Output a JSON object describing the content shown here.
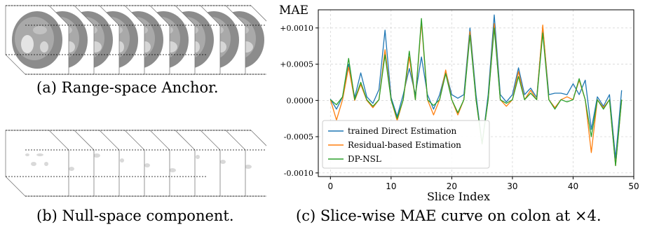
{
  "captions": {
    "a": "(a) Range-space Anchor.",
    "b": "(b) Null-space component.",
    "c": "(c) Slice-wise MAE curve on colon at ×4."
  },
  "chart_data": {
    "type": "line",
    "ylabel": "MAE",
    "xlabel": "Slice Index",
    "xlim": [
      -2,
      50
    ],
    "ylim": [
      -0.00105,
      0.00125
    ],
    "x_ticks": [
      0,
      10,
      20,
      30,
      40,
      50
    ],
    "y_ticks": [
      0.001,
      0.0005,
      0.0,
      -0.0005,
      -0.001
    ],
    "y_tick_labels": [
      "+0.0010",
      "+0.0005",
      "0.0000",
      "-0.0005",
      "-0.0010"
    ],
    "grid": true,
    "legend_position": "lower-left",
    "x": [
      0,
      1,
      2,
      3,
      4,
      5,
      6,
      7,
      8,
      9,
      10,
      11,
      12,
      13,
      14,
      15,
      16,
      17,
      18,
      19,
      20,
      21,
      22,
      23,
      24,
      25,
      26,
      27,
      28,
      29,
      30,
      31,
      32,
      33,
      34,
      35,
      36,
      37,
      38,
      39,
      40,
      41,
      42,
      43,
      44,
      45,
      46,
      47,
      48
    ],
    "series": [
      {
        "name": "trained Direct Estimation",
        "color": "#1f77b4",
        "values": [
          2e-05,
          -0.00012,
          5e-05,
          0.0005,
          4e-05,
          0.00038,
          5e-05,
          -4e-05,
          0.00015,
          0.00097,
          4e-05,
          -0.00022,
          8e-05,
          0.00044,
          8e-05,
          0.0006,
          8e-05,
          -0.00012,
          8e-05,
          0.0004,
          8e-05,
          3e-05,
          8e-05,
          0.001,
          8e-05,
          -0.0006,
          8e-05,
          0.00118,
          8e-05,
          -2e-05,
          8e-05,
          0.00045,
          8e-05,
          0.00017,
          4e-05,
          0.001,
          8e-05,
          0.0001,
          0.0001,
          8e-05,
          0.00023,
          8e-05,
          0.00028,
          -0.0004,
          5e-05,
          -8e-05,
          8e-05,
          -0.0008,
          0.00014
        ]
      },
      {
        "name": "Residual-based Estimation",
        "color": "#ff7f0e",
        "values": [
          1e-05,
          -0.00027,
          1e-05,
          0.00046,
          0.0,
          0.00022,
          0.0,
          -0.0001,
          1e-05,
          0.0007,
          1e-05,
          -0.00028,
          1e-05,
          0.0006,
          1e-05,
          0.00108,
          1e-05,
          -0.0002,
          1e-05,
          0.00042,
          1e-05,
          -0.0002,
          1e-05,
          0.00095,
          1e-05,
          -0.0006,
          1e-05,
          0.00106,
          1e-05,
          -8e-05,
          1e-05,
          0.0004,
          1e-05,
          0.00014,
          1e-05,
          0.00104,
          1e-05,
          -0.0001,
          1e-05,
          5e-05,
          1e-05,
          0.00028,
          1e-05,
          -0.00072,
          1e-05,
          -0.0001,
          1e-05,
          -0.0009,
          1e-05
        ]
      },
      {
        "name": "DP-NSL",
        "color": "#2ca02c",
        "values": [
          1e-05,
          -6e-05,
          5e-05,
          0.00058,
          1e-05,
          0.00025,
          1e-05,
          -8e-05,
          1e-05,
          0.00063,
          1e-05,
          -0.00025,
          1e-05,
          0.00068,
          1e-05,
          0.00113,
          1e-05,
          -7e-05,
          1e-05,
          0.00037,
          1e-05,
          -0.00017,
          1e-05,
          0.0009,
          1e-05,
          -0.0006,
          1e-05,
          0.001,
          1e-05,
          -4e-05,
          1e-05,
          0.00033,
          1e-05,
          0.0001,
          1e-05,
          0.00093,
          1e-05,
          -0.00012,
          1e-05,
          -2e-05,
          1e-05,
          0.0003,
          1e-05,
          -0.0005,
          1e-05,
          -0.00012,
          1e-05,
          -0.0009,
          1e-05
        ]
      }
    ]
  }
}
